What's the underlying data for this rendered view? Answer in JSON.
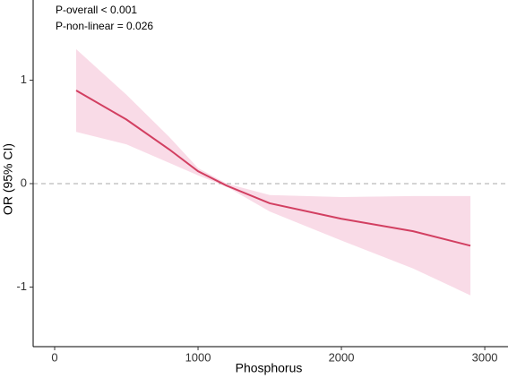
{
  "chart_data": {
    "type": "line",
    "x_label": "Phosphorus",
    "y_label": "OR (95% CI)",
    "annotations": [
      "P-overall < 0.001",
      "P-non-linear = 0.026"
    ],
    "x": [
      150,
      500,
      800,
      1000,
      1200,
      1500,
      2000,
      2500,
      2900
    ],
    "values": [
      0.9,
      0.62,
      0.33,
      0.12,
      -0.02,
      -0.19,
      -0.34,
      -0.46,
      -0.6
    ],
    "lower": [
      0.5,
      0.38,
      0.2,
      0.08,
      -0.03,
      -0.27,
      -0.55,
      -0.82,
      -1.08
    ],
    "upper": [
      1.3,
      0.86,
      0.45,
      0.15,
      0,
      -0.11,
      -0.13,
      -0.12,
      -0.12
    ],
    "color": "#d23f61",
    "band_color": "#f9dbe7",
    "reference_line": 0,
    "xlim": [
      -150,
      3162
    ],
    "xticks": [
      0,
      1000,
      2000,
      3000
    ],
    "ylim": [
      -1.576,
      1.775
    ],
    "yticks": [
      -1,
      0,
      1
    ]
  }
}
